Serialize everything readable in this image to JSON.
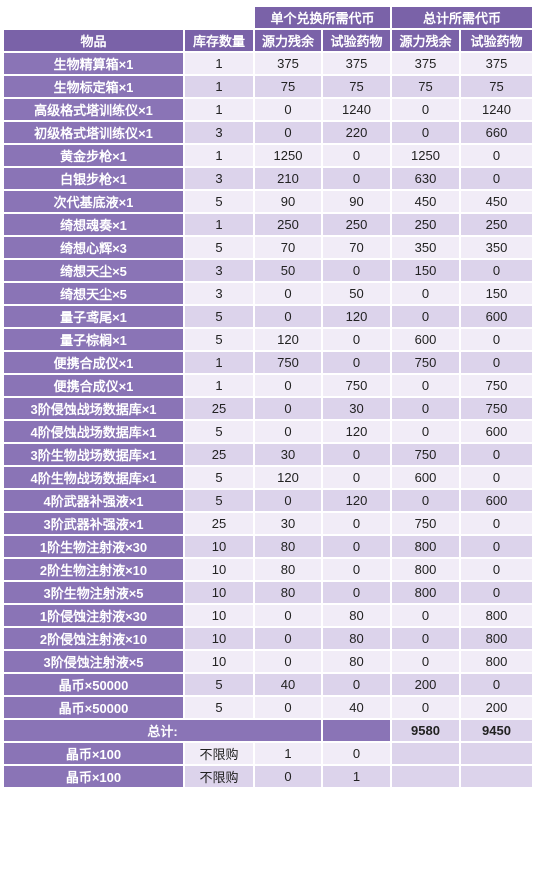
{
  "header": {
    "group_single": "单个兑换所需代币",
    "group_total": "总计所需代币",
    "col_item": "物品",
    "col_stock": "库存数量",
    "col_single_power": "源力残余",
    "col_single_potion": "试验药物",
    "col_total_power": "源力残余",
    "col_total_potion": "试验药物"
  },
  "rows": [
    {
      "name": "生物精算箱×1",
      "stock": "1",
      "sp": "375",
      "sx": "375",
      "tp": "375",
      "tx": "375"
    },
    {
      "name": "生物标定箱×1",
      "stock": "1",
      "sp": "75",
      "sx": "75",
      "tp": "75",
      "tx": "75"
    },
    {
      "name": "高级格式塔训练仪×1",
      "stock": "1",
      "sp": "0",
      "sx": "1240",
      "tp": "0",
      "tx": "1240"
    },
    {
      "name": "初级格式塔训练仪×1",
      "stock": "3",
      "sp": "0",
      "sx": "220",
      "tp": "0",
      "tx": "660"
    },
    {
      "name": "黄金步枪×1",
      "stock": "1",
      "sp": "1250",
      "sx": "0",
      "tp": "1250",
      "tx": "0"
    },
    {
      "name": "白银步枪×1",
      "stock": "3",
      "sp": "210",
      "sx": "0",
      "tp": "630",
      "tx": "0"
    },
    {
      "name": "次代基底液×1",
      "stock": "5",
      "sp": "90",
      "sx": "90",
      "tp": "450",
      "tx": "450"
    },
    {
      "name": "绮想魂奏×1",
      "stock": "1",
      "sp": "250",
      "sx": "250",
      "tp": "250",
      "tx": "250"
    },
    {
      "name": "绮想心辉×3",
      "stock": "5",
      "sp": "70",
      "sx": "70",
      "tp": "350",
      "tx": "350"
    },
    {
      "name": "绮想天尘×5",
      "stock": "3",
      "sp": "50",
      "sx": "0",
      "tp": "150",
      "tx": "0"
    },
    {
      "name": "绮想天尘×5",
      "stock": "3",
      "sp": "0",
      "sx": "50",
      "tp": "0",
      "tx": "150"
    },
    {
      "name": "量子鸢尾×1",
      "stock": "5",
      "sp": "0",
      "sx": "120",
      "tp": "0",
      "tx": "600"
    },
    {
      "name": "量子棕榈×1",
      "stock": "5",
      "sp": "120",
      "sx": "0",
      "tp": "600",
      "tx": "0"
    },
    {
      "name": "便携合成仪×1",
      "stock": "1",
      "sp": "750",
      "sx": "0",
      "tp": "750",
      "tx": "0"
    },
    {
      "name": "便携合成仪×1",
      "stock": "1",
      "sp": "0",
      "sx": "750",
      "tp": "0",
      "tx": "750"
    },
    {
      "name": "3阶侵蚀战场数据库×1",
      "stock": "25",
      "sp": "0",
      "sx": "30",
      "tp": "0",
      "tx": "750"
    },
    {
      "name": "4阶侵蚀战场数据库×1",
      "stock": "5",
      "sp": "0",
      "sx": "120",
      "tp": "0",
      "tx": "600"
    },
    {
      "name": "3阶生物战场数据库×1",
      "stock": "25",
      "sp": "30",
      "sx": "0",
      "tp": "750",
      "tx": "0"
    },
    {
      "name": "4阶生物战场数据库×1",
      "stock": "5",
      "sp": "120",
      "sx": "0",
      "tp": "600",
      "tx": "0"
    },
    {
      "name": "4阶武器补强液×1",
      "stock": "5",
      "sp": "0",
      "sx": "120",
      "tp": "0",
      "tx": "600"
    },
    {
      "name": "3阶武器补强液×1",
      "stock": "25",
      "sp": "30",
      "sx": "0",
      "tp": "750",
      "tx": "0"
    },
    {
      "name": "1阶生物注射液×30",
      "stock": "10",
      "sp": "80",
      "sx": "0",
      "tp": "800",
      "tx": "0"
    },
    {
      "name": "2阶生物注射液×10",
      "stock": "10",
      "sp": "80",
      "sx": "0",
      "tp": "800",
      "tx": "0"
    },
    {
      "name": "3阶生物注射液×5",
      "stock": "10",
      "sp": "80",
      "sx": "0",
      "tp": "800",
      "tx": "0"
    },
    {
      "name": "1阶侵蚀注射液×30",
      "stock": "10",
      "sp": "0",
      "sx": "80",
      "tp": "0",
      "tx": "800"
    },
    {
      "name": "2阶侵蚀注射液×10",
      "stock": "10",
      "sp": "0",
      "sx": "80",
      "tp": "0",
      "tx": "800"
    },
    {
      "name": "3阶侵蚀注射液×5",
      "stock": "10",
      "sp": "0",
      "sx": "80",
      "tp": "0",
      "tx": "800"
    },
    {
      "name": "晶币×50000",
      "stock": "5",
      "sp": "40",
      "sx": "0",
      "tp": "200",
      "tx": "0"
    },
    {
      "name": "晶币×50000",
      "stock": "5",
      "sp": "0",
      "sx": "40",
      "tp": "0",
      "tx": "200"
    }
  ],
  "total": {
    "label": "总计:",
    "power": "9580",
    "potion": "9450"
  },
  "extra_rows": [
    {
      "name": "晶币×100",
      "stock": "不限购",
      "sp": "1",
      "sx": "0"
    },
    {
      "name": "晶币×100",
      "stock": "不限购",
      "sp": "0",
      "sx": "1"
    }
  ]
}
